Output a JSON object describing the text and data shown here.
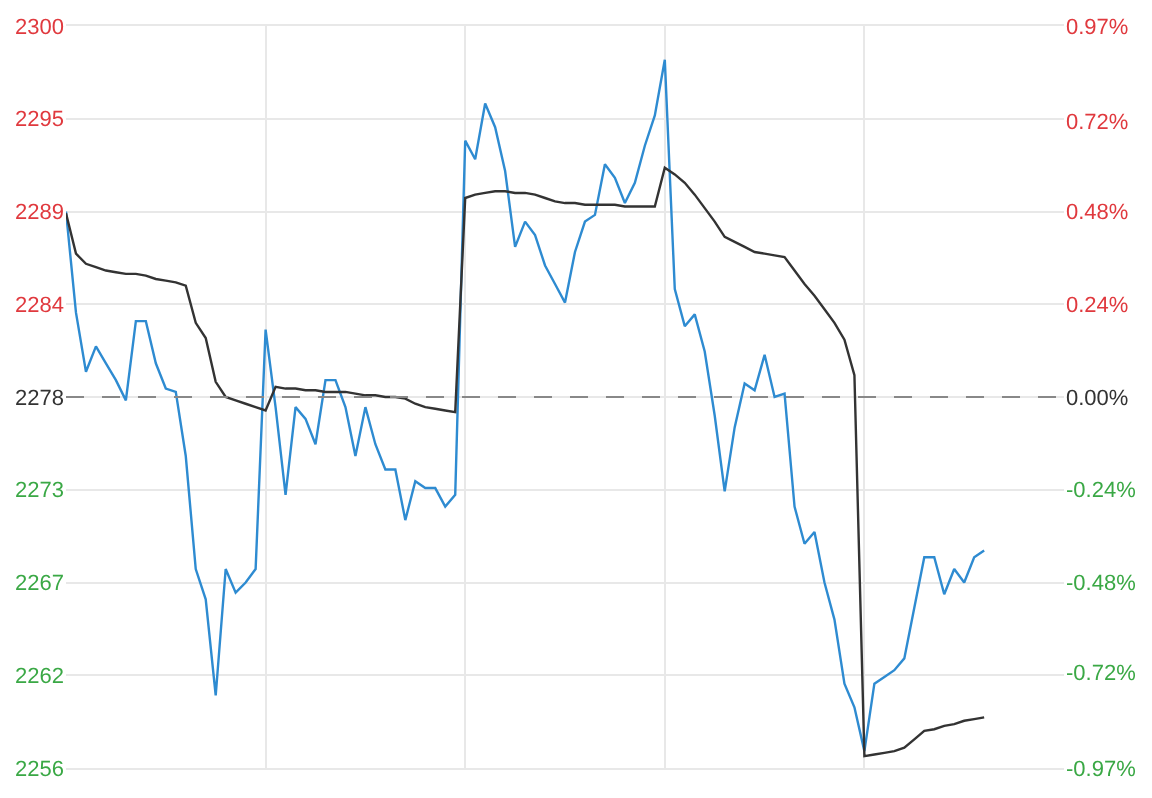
{
  "chart_data": {
    "type": "line",
    "categories": [
      null,
      null,
      null,
      null,
      null,
      null,
      null,
      null,
      null,
      null,
      null,
      null,
      null,
      null,
      null,
      null,
      null,
      null,
      null,
      null,
      null,
      null,
      null,
      null,
      null,
      null,
      null,
      null,
      null,
      null,
      null,
      null,
      null,
      null,
      null,
      null,
      null,
      null,
      null,
      null,
      null,
      null,
      null,
      null,
      null,
      null,
      null,
      null,
      null,
      null,
      null,
      null,
      null,
      null,
      null,
      null,
      null,
      null,
      null,
      null,
      null,
      null,
      null,
      null,
      null,
      null,
      null,
      null,
      null,
      null,
      null,
      null,
      null,
      null,
      null,
      null,
      null,
      null,
      null,
      null,
      null,
      null,
      null,
      null,
      null,
      null,
      null,
      null,
      null,
      null,
      null,
      null,
      null,
      null,
      null,
      null,
      null,
      null,
      null,
      null,
      null
    ],
    "series": [
      {
        "color": "#2e8bd1",
        "values": [
          2289,
          2283,
          2279.5,
          2281,
          2280,
          2279,
          2277.8,
          2282.5,
          2282.5,
          2280,
          2278.5,
          2278.3,
          2274.5,
          2267.8,
          2266,
          2260.3,
          2267.8,
          2266.4,
          2267,
          2267.8,
          2282,
          2277.4,
          2272.2,
          2277.4,
          2276.7,
          2275.2,
          2279,
          2279,
          2277.4,
          2274.5,
          2277.4,
          2275.2,
          2273.7,
          2273.7,
          2270.7,
          2273,
          2272.6,
          2272.6,
          2271.5,
          2272.2,
          2293.2,
          2292.1,
          2295.4,
          2294,
          2291.4,
          2286.9,
          2288.4,
          2287.6,
          2285.8,
          2284.7,
          2283.6,
          2286.6,
          2288.4,
          2288.8,
          2291.8,
          2291,
          2289.5,
          2290.7,
          2292.9,
          2294.7,
          2298,
          2284.4,
          2282.2,
          2282.9,
          2280.7,
          2276.9,
          2272.4,
          2276.2,
          2278.8,
          2278.4,
          2280.5,
          2278,
          2278.2,
          2271.5,
          2269.3,
          2270,
          2267,
          2264.8,
          2261,
          2259.6,
          2257,
          2261,
          2261.4,
          2261.8,
          2262.5,
          2265.5,
          2268.5,
          2268.5,
          2266.3,
          2267.8,
          2267,
          2268.5,
          2268.9,
          null,
          null,
          null,
          null,
          null,
          null,
          null,
          null
        ]
      },
      {
        "color": "#333333",
        "values": [
          2288.9,
          2286.5,
          2285.9,
          2285.7,
          2285.5,
          2285.4,
          2285.3,
          2285.3,
          2285.2,
          2285,
          2284.9,
          2284.8,
          2284.6,
          2282.4,
          2281.5,
          2278.9,
          2278,
          2277.8,
          2277.6,
          2277.4,
          2277.2,
          2278.6,
          2278.5,
          2278.5,
          2278.4,
          2278.4,
          2278.3,
          2278.3,
          2278.3,
          2278.2,
          2278.1,
          2278.1,
          2278,
          2278,
          2277.9,
          2277.6,
          2277.4,
          2277.3,
          2277.2,
          2277.1,
          2289.8,
          2290,
          2290.1,
          2290.2,
          2290.2,
          2290.1,
          2290.1,
          2290,
          2289.8,
          2289.6,
          2289.5,
          2289.5,
          2289.4,
          2289.4,
          2289.4,
          2289.4,
          2289.3,
          2289.3,
          2289.3,
          2289.3,
          2291.6,
          2291.2,
          2290.7,
          2290,
          2289.2,
          2288.4,
          2287.5,
          2287.2,
          2286.9,
          2286.6,
          2286.5,
          2286.4,
          2286.3,
          2285.5,
          2284.7,
          2284,
          2283.2,
          2282.4,
          2281.4,
          2279.3,
          2256.7,
          2256.8,
          2256.9,
          2257,
          2257.2,
          2257.7,
          2258.2,
          2258.3,
          2258.5,
          2258.6,
          2258.8,
          2258.9,
          2259,
          null,
          null,
          null,
          null,
          null,
          null,
          null,
          null
        ]
      }
    ],
    "ylim": [
      2256,
      2300
    ],
    "yticks": [
      2256,
      {
        "value": 2261.5,
        "label": "2262"
      },
      2267,
      {
        "value": 2272.5,
        "label": "2273"
      },
      2278,
      {
        "value": 2283.5,
        "label": "2284"
      },
      2289,
      {
        "value": 2294.5,
        "label": "2295"
      },
      2300
    ],
    "y2lim": [
      -0.97,
      0.97
    ],
    "y2ticks": [
      {
        "value": -0.97,
        "label": "-0.97%"
      },
      {
        "value": -0.72,
        "label": "-0.72%"
      },
      {
        "value": -0.485,
        "label": "-0.48%"
      },
      {
        "value": -0.2425,
        "label": "-0.24%"
      },
      {
        "value": 0,
        "label": "0.00%"
      },
      {
        "value": 0.2425,
        "label": "0.24%"
      },
      {
        "value": 0.485,
        "label": "0.48%"
      },
      {
        "value": 0.72,
        "label": "0.72%"
      },
      {
        "value": 0.97,
        "label": "0.97%"
      }
    ],
    "ref_lines": [
      {
        "axis": "y",
        "value": 2278,
        "color": "#888888",
        "line_style": "dashed"
      }
    ],
    "grid": true,
    "marker": "none",
    "line_style": "solid"
  }
}
